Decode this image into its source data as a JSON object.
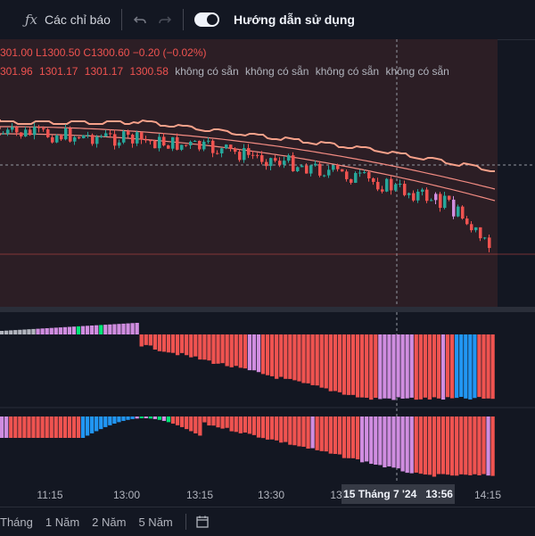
{
  "toolbar": {
    "indicators_label": "Các chỉ báo",
    "guide_label": "Hướng dẫn sử dụng"
  },
  "legend": {
    "ohlc": "301.00 L1300.50 C1300.60 −0.20 (−0.02%)",
    "values": [
      "301.96",
      "1301.17",
      "1301.17",
      "1300.58"
    ],
    "na": [
      "không có sẵn",
      "không có sẵn",
      "không có sẵn",
      "không có sẵn"
    ]
  },
  "timeaxis": {
    "ticks": [
      "11:15",
      "13:00",
      "13:15",
      "13:30",
      "13",
      "14:15"
    ],
    "crosshair_date": "15 Tháng 7 '24",
    "crosshair_time": "13:56"
  },
  "ranges": [
    "Tháng",
    "1 Năm",
    "2 Năm",
    "5 Năm"
  ],
  "colors": {
    "up": "#26a69a",
    "down": "#ef5350",
    "violet": "#d08de0",
    "blue": "#2196f3",
    "green": "#00e676",
    "gray": "#b2b5be"
  }
}
